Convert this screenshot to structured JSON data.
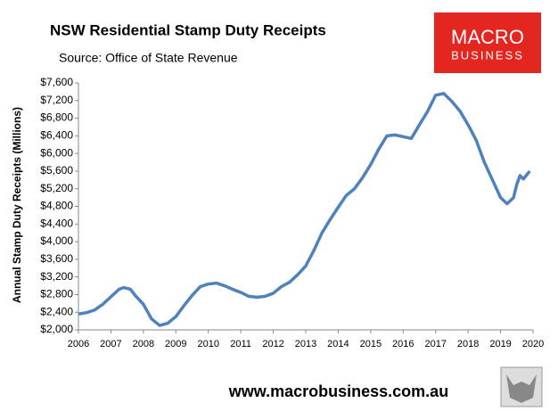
{
  "chart_data": {
    "type": "line",
    "title": "NSW Residential Stamp Duty Receipts",
    "subtitle": "Source: Office of State Revenue",
    "y_label": "Annual Stamp Duty Receipts (Millions)",
    "x": [
      2006.0,
      2006.25,
      2006.5,
      2006.75,
      2007.0,
      2007.25,
      2007.4,
      2007.6,
      2007.75,
      2008.0,
      2008.25,
      2008.5,
      2008.75,
      2009.0,
      2009.25,
      2009.5,
      2009.75,
      2010.0,
      2010.25,
      2010.5,
      2010.75,
      2011.0,
      2011.25,
      2011.5,
      2011.75,
      2012.0,
      2012.25,
      2012.5,
      2012.75,
      2013.0,
      2013.25,
      2013.5,
      2013.75,
      2014.0,
      2014.25,
      2014.5,
      2014.75,
      2015.0,
      2015.25,
      2015.5,
      2015.75,
      2016.0,
      2016.25,
      2016.5,
      2016.75,
      2017.0,
      2017.25,
      2017.5,
      2017.75,
      2018.0,
      2018.25,
      2018.5,
      2018.75,
      2019.0,
      2019.2,
      2019.4,
      2019.5,
      2019.6,
      2019.7,
      2019.9
    ],
    "series": [
      {
        "name": "Receipts",
        "color": "#4f81bd",
        "values": [
          2360,
          2390,
          2450,
          2580,
          2750,
          2920,
          2960,
          2920,
          2780,
          2580,
          2250,
          2100,
          2150,
          2300,
          2550,
          2780,
          2980,
          3040,
          3060,
          3000,
          2920,
          2850,
          2760,
          2740,
          2760,
          2830,
          2980,
          3080,
          3250,
          3450,
          3800,
          4200,
          4500,
          4780,
          5050,
          5200,
          5450,
          5750,
          6100,
          6400,
          6420,
          6380,
          6340,
          6650,
          6950,
          7320,
          7360,
          7180,
          6960,
          6650,
          6300,
          5800,
          5400,
          5000,
          4860,
          5000,
          5300,
          5500,
          5420,
          5600
        ]
      }
    ],
    "xlim": [
      2006,
      2020
    ],
    "xticks": [
      2006,
      2007,
      2008,
      2009,
      2010,
      2011,
      2012,
      2013,
      2014,
      2015,
      2016,
      2017,
      2018,
      2019,
      2020
    ],
    "ylim": [
      2000,
      7600
    ],
    "yticks": [
      {
        "value": 2000,
        "label": "$2,000"
      },
      {
        "value": 2400,
        "label": "$2,400"
      },
      {
        "value": 2800,
        "label": "$2,800"
      },
      {
        "value": 3200,
        "label": "$3,200"
      },
      {
        "value": 3600,
        "label": "$3,600"
      },
      {
        "value": 4000,
        "label": "$4,000"
      },
      {
        "value": 4400,
        "label": "$4,400"
      },
      {
        "value": 4800,
        "label": "$4,800"
      },
      {
        "value": 5200,
        "label": "$5,200"
      },
      {
        "value": 5600,
        "label": "$5,600"
      },
      {
        "value": 6000,
        "label": "$6,000"
      },
      {
        "value": 6400,
        "label": "$6,400"
      },
      {
        "value": 6800,
        "label": "$6,800"
      },
      {
        "value": 7200,
        "label": "$7,200"
      },
      {
        "value": 7600,
        "label": "$7,600"
      }
    ],
    "grid": false
  },
  "logo": {
    "line1": "MACRO",
    "line2": "BUSINESS"
  },
  "footer": "www.macrobusiness.com.au"
}
